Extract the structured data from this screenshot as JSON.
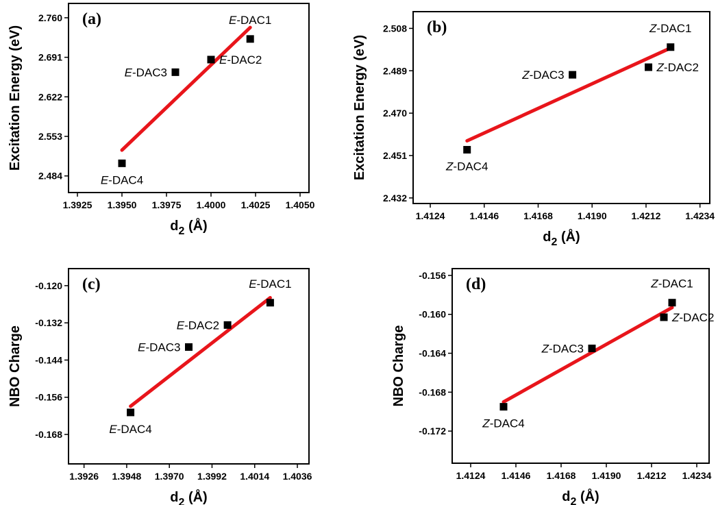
{
  "colors": {
    "fit_line": "#e8151b",
    "marker": "#000000",
    "axis": "#000000"
  },
  "chart_data": [
    {
      "type": "scatter",
      "panel_label": "(a)",
      "xlabel_main": "d",
      "xlabel_sub": "2",
      "xlabel_unit": " (Å)",
      "ylabel": "Excitation Energy (eV)",
      "xlim": [
        1.392,
        1.4055
      ],
      "ylim": [
        2.455,
        2.785
      ],
      "x_ticks": [
        "1.3925",
        "1.3950",
        "1.3975",
        "1.4000",
        "1.4025",
        "1.4050"
      ],
      "y_ticks": [
        "2.484",
        "2.553",
        "2.622",
        "2.691",
        "2.760"
      ],
      "points": [
        {
          "prefix": "E",
          "name": "-DAC1",
          "x": 1.4022,
          "y": 2.723,
          "label_pos": "above"
        },
        {
          "prefix": "E",
          "name": "-DAC2",
          "x": 1.4,
          "y": 2.687,
          "label_pos": "right"
        },
        {
          "prefix": "E",
          "name": "-DAC3",
          "x": 1.398,
          "y": 2.665,
          "label_pos": "left"
        },
        {
          "prefix": "E",
          "name": "-DAC4",
          "x": 1.395,
          "y": 2.506,
          "label_pos": "below"
        }
      ],
      "fit": {
        "x": [
          1.395,
          1.4022
        ],
        "y": [
          2.529,
          2.743
        ]
      }
    },
    {
      "type": "scatter",
      "panel_label": "(b)",
      "xlabel_main": "d",
      "xlabel_sub": "2",
      "xlabel_unit": " (Å)",
      "ylabel": "Excitation Energy (eV)",
      "xlim": [
        1.4117,
        1.4238
      ],
      "ylim": [
        2.4295,
        2.5155
      ],
      "x_ticks": [
        "1.4124",
        "1.4146",
        "1.4168",
        "1.4190",
        "1.4212",
        "1.4234"
      ],
      "y_ticks": [
        "2.432",
        "2.451",
        "2.470",
        "2.489",
        "2.508"
      ],
      "points": [
        {
          "prefix": "Z",
          "name": "-DAC1",
          "x": 1.4222,
          "y": 2.4996,
          "label_pos": "above"
        },
        {
          "prefix": "Z",
          "name": "-DAC2",
          "x": 1.4213,
          "y": 2.4906,
          "label_pos": "right"
        },
        {
          "prefix": "Z",
          "name": "-DAC3",
          "x": 1.4182,
          "y": 2.4872,
          "label_pos": "left"
        },
        {
          "prefix": "Z",
          "name": "-DAC4",
          "x": 1.4139,
          "y": 2.4536,
          "label_pos": "below"
        }
      ],
      "fit": {
        "x": [
          1.4139,
          1.4222
        ],
        "y": [
          2.4576,
          2.4992
        ]
      }
    },
    {
      "type": "scatter",
      "panel_label": "(c)",
      "xlabel_main": "d",
      "xlabel_sub": "2",
      "xlabel_unit": " (Å)",
      "ylabel": "NBO Charge",
      "xlim": [
        1.3918,
        1.4042
      ],
      "ylim": [
        -0.1775,
        -0.1145
      ],
      "x_ticks": [
        "1.3926",
        "1.3948",
        "1.3970",
        "1.3992",
        "1.4014",
        "1.4036"
      ],
      "y_ticks": [
        "-0.168",
        "-0.156",
        "-0.144",
        "-0.132",
        "-0.120"
      ],
      "points": [
        {
          "prefix": "E",
          "name": "-DAC1",
          "x": 1.4022,
          "y": -0.1255,
          "label_pos": "above"
        },
        {
          "prefix": "E",
          "name": "-DAC2",
          "x": 1.4,
          "y": -0.1327,
          "label_pos": "left"
        },
        {
          "prefix": "E",
          "name": "-DAC3",
          "x": 1.398,
          "y": -0.1398,
          "label_pos": "left"
        },
        {
          "prefix": "E",
          "name": "-DAC4",
          "x": 1.395,
          "y": -0.1609,
          "label_pos": "below"
        }
      ],
      "fit": {
        "x": [
          1.395,
          1.4022
        ],
        "y": [
          -0.1589,
          -0.1239
        ]
      }
    },
    {
      "type": "scatter",
      "panel_label": "(d)",
      "xlabel_main": "d",
      "xlabel_sub": "2",
      "xlabel_unit": " (Å)",
      "ylabel": "NBO Charge",
      "xlim": [
        1.4115,
        1.424
      ],
      "ylim": [
        -0.1753,
        -0.1553
      ],
      "x_ticks": [
        "1.4124",
        "1.4146",
        "1.4168",
        "1.4190",
        "1.4212",
        "1.4234"
      ],
      "y_ticks": [
        "-0.172",
        "-0.168",
        "-0.164",
        "-0.160",
        "-0.156"
      ],
      "points": [
        {
          "prefix": "Z",
          "name": "-DAC1",
          "x": 1.4222,
          "y": -0.1588,
          "label_pos": "above"
        },
        {
          "prefix": "Z",
          "name": "-DAC2",
          "x": 1.4218,
          "y": -0.1603,
          "label_pos": "right"
        },
        {
          "prefix": "Z",
          "name": "-DAC3",
          "x": 1.4183,
          "y": -0.1635,
          "label_pos": "left"
        },
        {
          "prefix": "Z",
          "name": "-DAC4",
          "x": 1.414,
          "y": -0.1695,
          "label_pos": "below"
        }
      ],
      "fit": {
        "x": [
          1.414,
          1.4222
        ],
        "y": [
          -0.169,
          -0.1593
        ]
      }
    }
  ]
}
